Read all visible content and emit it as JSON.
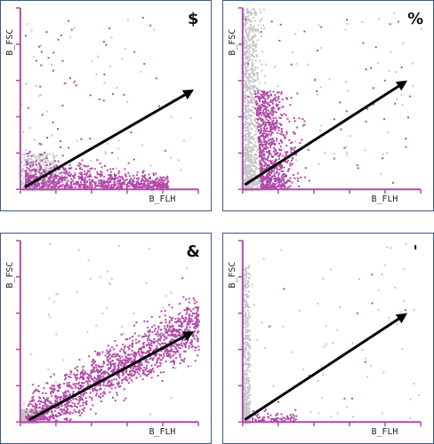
{
  "colors": {
    "gated": "#b04aa8",
    "ungated": "#c6c6c6",
    "axis": "#b04aa8",
    "arrow": "#000000",
    "frame": "#3d5a80"
  },
  "chart_data": [
    {
      "type": "scatter",
      "corner_label": "$",
      "xlabel": "B_FLH",
      "ylabel": "B_FSC",
      "xlim": [
        0,
        4
      ],
      "ylim": [
        0,
        4
      ],
      "ungated_region": {
        "x": [
          0,
          0.8
        ],
        "y": [
          0,
          0.8
        ]
      },
      "gated_cluster": {
        "x_range": [
          0.1,
          3.3
        ],
        "y_range": [
          0.05,
          1.2
        ],
        "shape": "horizontal band"
      },
      "arrow": {
        "from": [
          0.1,
          0.05
        ],
        "to": [
          3.9,
          2.2
        ]
      }
    },
    {
      "type": "scatter",
      "corner_label": "%",
      "xlabel": "B_FLH",
      "ylabel": "B_FSC",
      "xlim": [
        0,
        4
      ],
      "ylim": [
        0,
        4
      ],
      "ungated_region": {
        "x": [
          0,
          0.6
        ],
        "y": [
          0,
          4
        ]
      },
      "gated_cluster": {
        "x_range": [
          0.2,
          1.6
        ],
        "y_range": [
          0.05,
          2.2
        ],
        "shape": "vertical plume"
      },
      "arrow": {
        "from": [
          0.05,
          0.1
        ],
        "to": [
          3.7,
          2.4
        ]
      }
    },
    {
      "type": "scatter",
      "corner_label": "&",
      "xlabel": "B_FLH",
      "ylabel": "B_FSC",
      "xlim": [
        0,
        4
      ],
      "ylim": [
        0,
        4
      ],
      "ungated_region": {
        "x": [
          0,
          0.4
        ],
        "y": [
          0,
          0.3
        ]
      },
      "gated_cluster": {
        "x_range": [
          0.1,
          4
        ],
        "y_range": [
          0.05,
          3.0
        ],
        "shape": "diagonal band"
      },
      "arrow": {
        "from": [
          0.2,
          0.05
        ],
        "to": [
          3.9,
          2.0
        ]
      }
    },
    {
      "type": "scatter",
      "corner_label": "'",
      "xlabel": "B_FLH",
      "ylabel": "B_FSC",
      "xlim": [
        0,
        4
      ],
      "ylim": [
        0,
        4
      ],
      "ungated_region": {
        "x": [
          0,
          0.15
        ],
        "y": [
          0,
          3.5
        ]
      },
      "gated_cluster": {
        "x_range": [
          0.2,
          1.2
        ],
        "y_range": [
          0.02,
          0.3
        ],
        "shape": "small blob"
      },
      "arrow": {
        "from": [
          0.05,
          0.05
        ],
        "to": [
          3.7,
          2.4
        ]
      }
    }
  ]
}
